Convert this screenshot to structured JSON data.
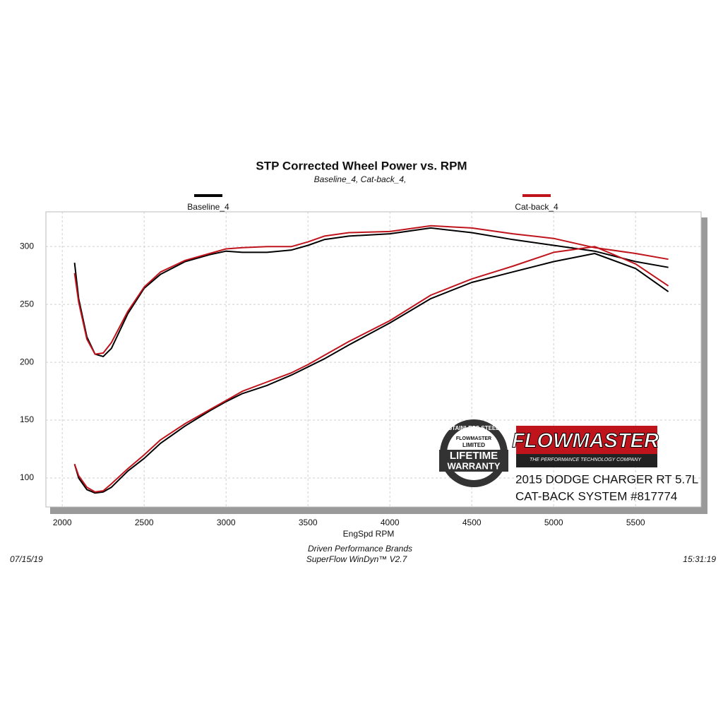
{
  "chart_data": {
    "type": "line",
    "title": "STP Corrected Wheel Power vs. RPM",
    "subtitle": "Baseline_4, Cat-back_4,",
    "x_label": "EngSpd  RPM",
    "x": [
      2075,
      2100,
      2150,
      2200,
      2250,
      2300,
      2400,
      2500,
      2600,
      2750,
      2900,
      3000,
      3100,
      3250,
      3400,
      3500,
      3600,
      3750,
      4000,
      4250,
      4500,
      4750,
      5000,
      5250,
      5500,
      5700
    ],
    "series": [
      {
        "name": "Baseline_4",
        "color": "#000000",
        "curves": [
          [
            286,
            255,
            222,
            207,
            205,
            212,
            242,
            264,
            276,
            287,
            293,
            296,
            295,
            295,
            297,
            301,
            306,
            309,
            311,
            316,
            312,
            306,
            301,
            296,
            287,
            282
          ],
          [
            112,
            100,
            90,
            87,
            88,
            92,
            106,
            117,
            130,
            145,
            158,
            166,
            173,
            180,
            189,
            196,
            203,
            215,
            234,
            255,
            269,
            278,
            287,
            294,
            281,
            261
          ]
        ]
      },
      {
        "name": "Cat-back_4",
        "color": "#c0141c",
        "curves": [
          [
            277,
            252,
            220,
            207,
            208,
            217,
            244,
            265,
            278,
            288,
            294,
            298,
            299,
            300,
            300,
            304,
            309,
            312,
            313,
            318,
            316,
            311,
            307,
            299,
            294,
            289
          ],
          [
            112,
            102,
            92,
            88,
            89,
            95,
            108,
            120,
            133,
            147,
            159,
            167,
            175,
            183,
            191,
            198,
            206,
            218,
            236,
            258,
            272,
            283,
            295,
            300,
            285,
            266
          ]
        ]
      }
    ],
    "xlim": [
      1900,
      5900
    ],
    "ylim": [
      75,
      330
    ],
    "xticks": [
      2000,
      2500,
      3000,
      3500,
      4000,
      4500,
      5000,
      5500
    ],
    "yticks": [
      100,
      150,
      200,
      250,
      300
    ],
    "grid": true,
    "footer": {
      "date": "07/15/19",
      "company": "Driven Performance Brands",
      "software": "SuperFlow WinDyn™ V2.7",
      "time": "15:31:19"
    }
  },
  "logo": {
    "badge": [
      "STAINLESS STEEL",
      "FLOWMASTER",
      "LIMITED",
      "LIFETIME",
      "WARRANTY"
    ],
    "brand": "FLOWMASTER",
    "tagline": "THE PERFORMANCE TECHNOLOGY COMPANY",
    "vehicle": "2015 DODGE CHARGER RT 5.7L",
    "system": "CAT-BACK SYSTEM #817774"
  }
}
